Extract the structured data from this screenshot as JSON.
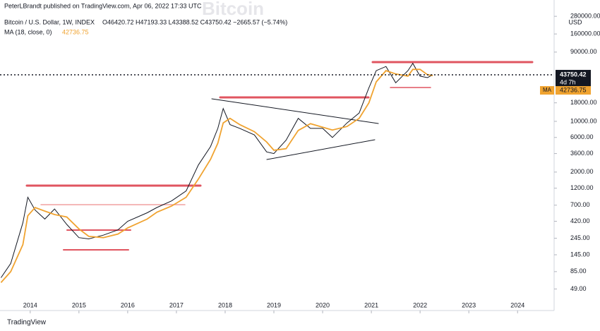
{
  "header": {
    "publisher": "PeterLBrandt published on TradingView.com, Apr 06, 2022 17:33 UTC",
    "watermark": "Bitcoin",
    "symbol": "Bitcoin / U.S. Dollar, 1W, INDEX",
    "ohlc": "O46420.72 H47193.33 L43388.52 C43750.42 −2665.57 (−5.74%)",
    "ma_label": "MA (18, close, 0)",
    "ma_value": "42736.75"
  },
  "footer": {
    "brand": "TradingView"
  },
  "chart_data": {
    "type": "line",
    "log_scale": true,
    "grid": false,
    "y_unit": "USD",
    "xlim": [
      2013.38,
      2024.75
    ],
    "xticks": [
      2014,
      2015,
      2016,
      2017,
      2018,
      2019,
      2020,
      2021,
      2022,
      2023,
      2024
    ],
    "ylim": [
      37,
      470000
    ],
    "yticks": [
      {
        "value": 49,
        "label": "49.00"
      },
      {
        "value": 85,
        "label": "85.00"
      },
      {
        "value": 145,
        "label": "145.00"
      },
      {
        "value": 245,
        "label": "245.00"
      },
      {
        "value": 420,
        "label": "420.00"
      },
      {
        "value": 700,
        "label": "700.00"
      },
      {
        "value": 1200,
        "label": "1200.00"
      },
      {
        "value": 2000,
        "label": "2000.00"
      },
      {
        "value": 3600,
        "label": "3600.00"
      },
      {
        "value": 6000,
        "label": "6000.00"
      },
      {
        "value": 10000,
        "label": "10000.00"
      },
      {
        "value": 18000,
        "label": "18000.00"
      },
      {
        "value": 90000,
        "label": "90000.00"
      },
      {
        "value": 160000,
        "label": "160000.00"
      },
      {
        "value": 280000,
        "label": "280000.00"
      }
    ],
    "x": [
      2013.4,
      2013.6,
      2013.85,
      2013.95,
      2014.1,
      2014.3,
      2014.5,
      2014.75,
      2015.0,
      2015.2,
      2015.5,
      2015.8,
      2016.0,
      2016.4,
      2016.6,
      2016.9,
      2017.2,
      2017.45,
      2017.7,
      2017.85,
      2017.96,
      2018.1,
      2018.3,
      2018.6,
      2018.85,
      2019.0,
      2019.25,
      2019.5,
      2019.75,
      2020.0,
      2020.2,
      2020.5,
      2020.75,
      2020.95,
      2021.1,
      2021.3,
      2021.5,
      2021.75,
      2021.85,
      2022.0,
      2022.15,
      2022.26
    ],
    "series": [
      {
        "name": "Bitcoin",
        "color": "#131722",
        "values": [
          70,
          110,
          400,
          900,
          600,
          450,
          620,
          380,
          250,
          240,
          270,
          320,
          420,
          550,
          650,
          800,
          1100,
          2500,
          4500,
          8000,
          15000,
          9000,
          8000,
          6500,
          3800,
          3600,
          5500,
          11000,
          8000,
          8000,
          6000,
          9500,
          13000,
          29000,
          50000,
          57000,
          34000,
          50000,
          63000,
          42000,
          40000,
          43750.42
        ]
      },
      {
        "name": "MA",
        "color": "#f0a330",
        "values": [
          60,
          85,
          200,
          500,
          650,
          580,
          520,
          480,
          330,
          260,
          250,
          280,
          340,
          450,
          560,
          680,
          900,
          1600,
          3000,
          5000,
          9500,
          11000,
          9000,
          7200,
          5200,
          4000,
          4200,
          7500,
          9300,
          8300,
          7600,
          8500,
          11000,
          18000,
          35000,
          50000,
          45000,
          42000,
          52000,
          52000,
          44000,
          42736.75
        ]
      }
    ],
    "last_price": 43750.42,
    "countdown": "4d 7h",
    "ma_tag": "MA",
    "ma_last": 42736.75
  }
}
